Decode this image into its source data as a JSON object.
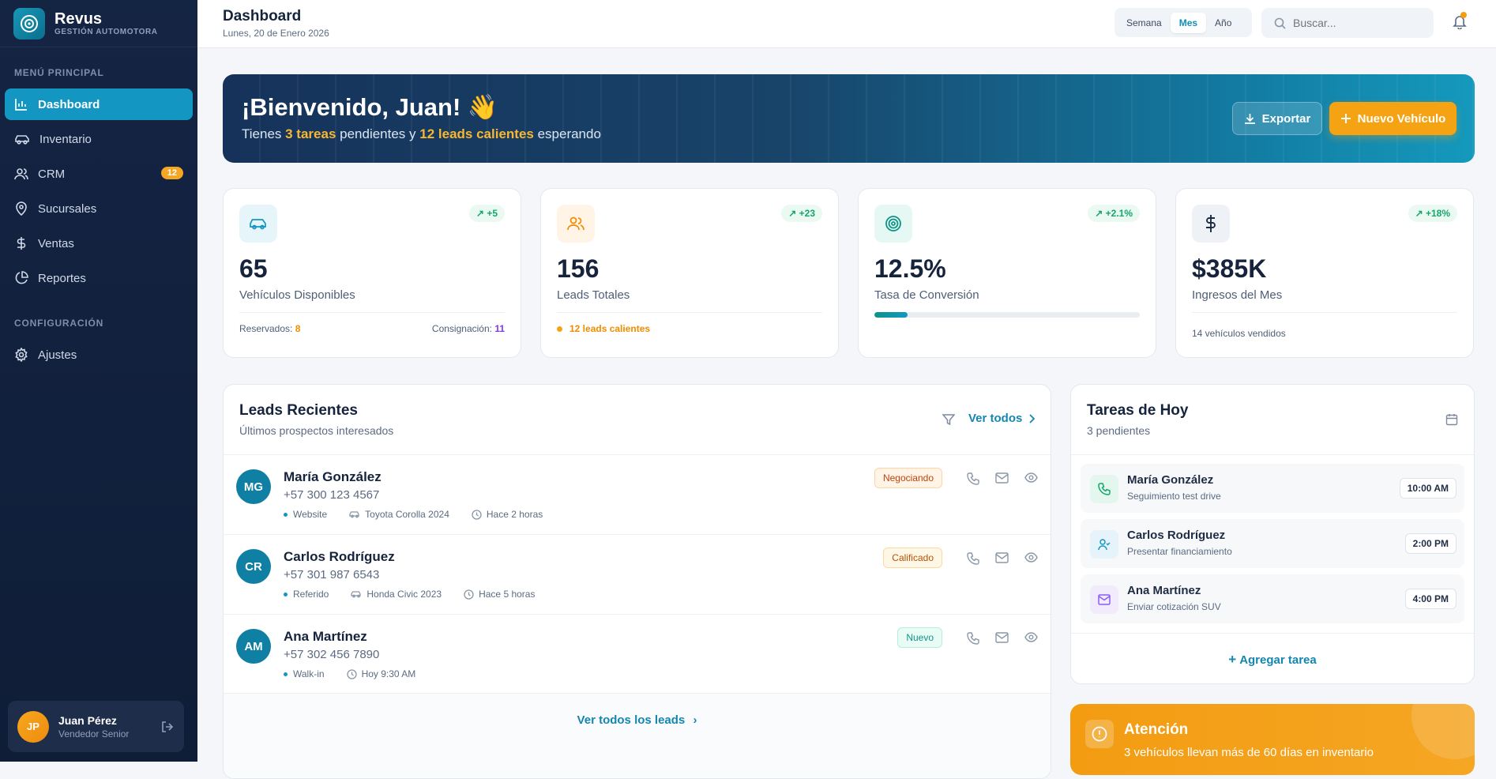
{
  "brand": {
    "name": "Revus",
    "subtitle": "GESTIÓN AUTOMOTORA"
  },
  "sidebar": {
    "section_main": "MENÚ PRINCIPAL",
    "items": [
      {
        "label": "Dashboard",
        "icon": "bar-chart-icon",
        "active": true
      },
      {
        "label": "Inventario",
        "icon": "car-icon"
      },
      {
        "label": "CRM",
        "icon": "users-icon",
        "badge": "12"
      },
      {
        "label": "Sucursales",
        "icon": "map-pin-icon"
      },
      {
        "label": "Ventas",
        "icon": "dollar-icon"
      },
      {
        "label": "Reportes",
        "icon": "pie-chart-icon"
      }
    ],
    "section_config": "CONFIGURACIÓN",
    "config_items": [
      {
        "label": "Ajustes",
        "icon": "gear-icon"
      }
    ]
  },
  "user": {
    "initials": "JP",
    "name": "Juan Pérez",
    "role": "Vendedor Senior"
  },
  "header": {
    "title": "Dashboard",
    "date": "Lunes, 20 de Enero 2026",
    "periods": [
      "Semana",
      "Mes",
      "Año"
    ],
    "selected_period": "Mes",
    "search_placeholder": "Buscar..."
  },
  "hero": {
    "greeting": "¡Bienvenido, Juan! 👋",
    "sub_pre": "Tienes ",
    "tasks_text": "3 tareas",
    "sub_mid": " pendientes y ",
    "leads_text": "12 leads calientes",
    "sub_post": " esperando",
    "export_label": "Exportar",
    "new_label": "Nuevo Vehículo"
  },
  "stats": [
    {
      "value": "65",
      "label": "Vehículos Disponibles",
      "delta": "+5",
      "foot_left_label": "Reservados: ",
      "foot_left_value": "8",
      "foot_right_label": "Consignación: ",
      "foot_right_value": "11"
    },
    {
      "value": "156",
      "label": "Leads Totales",
      "delta": "+23",
      "foot": "12 leads calientes"
    },
    {
      "value": "12.5%",
      "label": "Tasa de Conversión",
      "delta": "+2.1%",
      "progress": 0.125
    },
    {
      "value": "$385K",
      "label": "Ingresos del Mes",
      "delta": "+18%",
      "foot": "14 vehículos vendidos"
    }
  ],
  "leads": {
    "title": "Leads Recientes",
    "subtitle": "Últimos prospectos interesados",
    "view_all": "Ver todos",
    "footer_link": "Ver todos los leads",
    "items": [
      {
        "initials": "MG",
        "name": "María González",
        "phone": "+57 300 123 4567",
        "source": "Website",
        "vehicle": "Toyota Corolla 2024",
        "time": "Hace 2 horas",
        "status": "Negociando",
        "status_color": "#c2410c",
        "status_bg": "#fff4e6"
      },
      {
        "initials": "CR",
        "name": "Carlos Rodríguez",
        "phone": "+57 301 987 6543",
        "source": "Referido",
        "vehicle": "Honda Civic 2023",
        "time": "Hace 5 horas",
        "status": "Calificado",
        "status_color": "#b45309",
        "status_bg": "#fff7e6"
      },
      {
        "initials": "AM",
        "name": "Ana Martínez",
        "phone": "+57 302 456 7890",
        "source": "Walk-in",
        "vehicle": "",
        "time": "Hoy 9:30 AM",
        "status": "Nuevo",
        "status_color": "#0d9488",
        "status_bg": "#e9fbf5"
      }
    ]
  },
  "tasks": {
    "title": "Tareas de Hoy",
    "subtitle": "3 pendientes",
    "add_label": "Agregar tarea",
    "items": [
      {
        "name": "María González",
        "desc": "Seguimiento test drive",
        "time": "10:00 AM",
        "icon": "phone-icon"
      },
      {
        "name": "Carlos Rodríguez",
        "desc": "Presentar financiamiento",
        "time": "2:00 PM",
        "icon": "user-check-icon"
      },
      {
        "name": "Ana Martínez",
        "desc": "Enviar cotización SUV",
        "time": "4:00 PM",
        "icon": "mail-icon"
      }
    ]
  },
  "alert": {
    "title": "Atención",
    "text": "3 vehículos llevan más de 60 días en inventario"
  },
  "colors": {
    "accent": "#1496c2",
    "orange": "#f5a313",
    "sidebar": "#142443",
    "green": "#16a56d"
  }
}
